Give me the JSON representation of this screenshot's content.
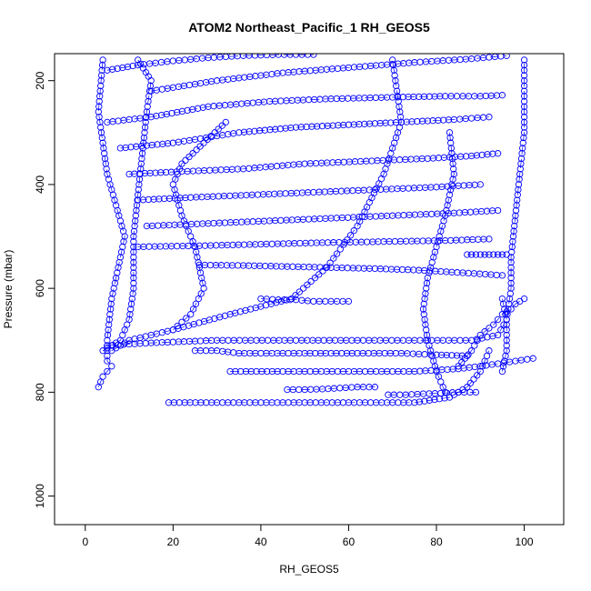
{
  "chart_data": {
    "type": "scatter",
    "title": "ATOM2 Northeast_Pacific_1 RH_GEOS5",
    "xlabel": "RH_GEOS5",
    "ylabel": "Pressure (mbar)",
    "xlim": [
      -7,
      109
    ],
    "ylim": [
      1055,
      148
    ],
    "y_reversed": true,
    "x_ticks": [
      0,
      20,
      40,
      60,
      80,
      100
    ],
    "y_ticks": [
      200,
      400,
      600,
      800,
      1000
    ],
    "grid": false,
    "marker": "open-circle",
    "line_style": "dashed",
    "color": "#0000ff",
    "series": [
      {
        "x": [
          3,
          4,
          6,
          5,
          5,
          6,
          9,
          5,
          3,
          4
        ],
        "y": [
          790,
          770,
          750,
          740,
          700,
          620,
          500,
          380,
          260,
          160
        ]
      },
      {
        "x": [
          4,
          8,
          10,
          11,
          11,
          12,
          13,
          14,
          15,
          12
        ],
        "y": [
          720,
          700,
          660,
          600,
          500,
          420,
          340,
          260,
          200,
          160
        ]
      },
      {
        "x": [
          5,
          15,
          30,
          48,
          62,
          75,
          88,
          94,
          96,
          95
        ],
        "y": [
          710,
          705,
          700,
          700,
          700,
          700,
          700,
          690,
          660,
          620
        ]
      },
      {
        "x": [
          6,
          10,
          20,
          33,
          47,
          55,
          62,
          68,
          72,
          70
        ],
        "y": [
          720,
          700,
          680,
          650,
          620,
          560,
          480,
          380,
          280,
          160
        ]
      },
      {
        "x": [
          19,
          30,
          45,
          60,
          75,
          83,
          87,
          90,
          92
        ],
        "y": [
          820,
          820,
          820,
          820,
          820,
          810,
          790,
          760,
          720
        ]
      },
      {
        "x": [
          33,
          45,
          60,
          75,
          85,
          90,
          94,
          98,
          102
        ],
        "y": [
          760,
          760,
          760,
          760,
          755,
          750,
          745,
          740,
          735
        ]
      },
      {
        "x": [
          25,
          30,
          35,
          40,
          50,
          62,
          72,
          80,
          87
        ],
        "y": [
          720,
          720,
          725,
          725,
          725,
          725,
          725,
          728,
          730
        ]
      },
      {
        "x": [
          20,
          24,
          27,
          25,
          22,
          20,
          22,
          27,
          32
        ],
        "y": [
          680,
          650,
          600,
          520,
          460,
          400,
          360,
          320,
          280
        ]
      },
      {
        "x": [
          82,
          80,
          78,
          77,
          78,
          80,
          82,
          84,
          83
        ],
        "y": [
          800,
          760,
          700,
          640,
          580,
          520,
          460,
          380,
          300
        ]
      },
      {
        "x": [
          95,
          96,
          96,
          97,
          97,
          98,
          99,
          100,
          100,
          100
        ],
        "y": [
          760,
          720,
          660,
          600,
          540,
          460,
          380,
          300,
          220,
          160
        ]
      },
      {
        "x": [
          85,
          88,
          90,
          93,
          95,
          97,
          98,
          100
        ],
        "y": [
          750,
          720,
          690,
          670,
          650,
          640,
          630,
          620
        ]
      },
      {
        "x": [
          5,
          15,
          28,
          42,
          56,
          70,
          82,
          90,
          95
        ],
        "y": [
          280,
          270,
          250,
          240,
          235,
          232,
          230,
          230,
          228
        ]
      },
      {
        "x": [
          8,
          20,
          35,
          48,
          60,
          72,
          84,
          92
        ],
        "y": [
          330,
          320,
          300,
          290,
          285,
          280,
          275,
          270
        ]
      },
      {
        "x": [
          10,
          22,
          36,
          50,
          64,
          78,
          88,
          94
        ],
        "y": [
          380,
          375,
          370,
          360,
          355,
          350,
          345,
          340
        ]
      },
      {
        "x": [
          12,
          24,
          38,
          52,
          66,
          80,
          90
        ],
        "y": [
          430,
          425,
          420,
          415,
          410,
          405,
          400
        ]
      },
      {
        "x": [
          14,
          28,
          42,
          56,
          70,
          84,
          94
        ],
        "y": [
          480,
          475,
          470,
          465,
          460,
          455,
          450
        ]
      },
      {
        "x": [
          12,
          26,
          40,
          54,
          68,
          82,
          92
        ],
        "y": [
          520,
          518,
          515,
          512,
          510,
          508,
          505
        ]
      },
      {
        "x": [
          26,
          36,
          46,
          56,
          66,
          76,
          86,
          95
        ],
        "y": [
          555,
          556,
          558,
          560,
          562,
          565,
          570,
          575
        ]
      },
      {
        "x": [
          5,
          12,
          20,
          28,
          36,
          44,
          52
        ],
        "y": [
          180,
          170,
          162,
          156,
          152,
          150,
          150
        ]
      },
      {
        "x": [
          15,
          30,
          45,
          60,
          75,
          88,
          96
        ],
        "y": [
          220,
          200,
          185,
          175,
          165,
          158,
          152
        ]
      },
      {
        "x": [
          40,
          44,
          48,
          52,
          56,
          60
        ],
        "y": [
          620,
          622,
          622,
          625,
          625,
          625
        ]
      },
      {
        "x": [
          46,
          50,
          54,
          58,
          62,
          66
        ],
        "y": [
          795,
          795,
          794,
          792,
          790,
          790
        ]
      },
      {
        "x": [
          69,
          73,
          77,
          81,
          85,
          89
        ],
        "y": [
          805,
          805,
          803,
          802,
          800,
          800
        ]
      },
      {
        "x": [
          87,
          89,
          91,
          93,
          95,
          96
        ],
        "y": [
          535,
          535,
          535,
          535,
          535,
          535
        ]
      }
    ]
  }
}
